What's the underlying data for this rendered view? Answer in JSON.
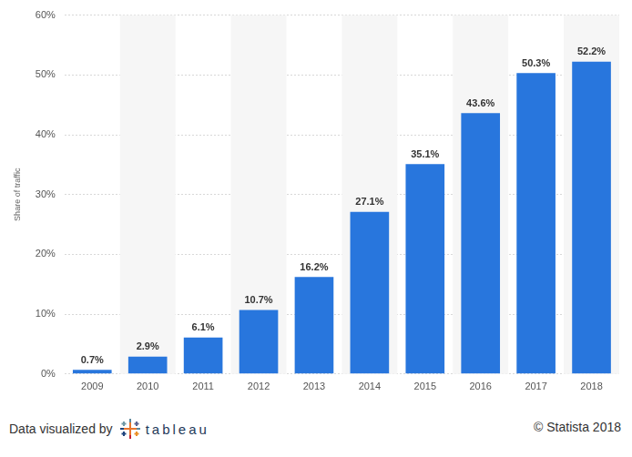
{
  "chart_data": {
    "type": "bar",
    "y_label": "Share of traffic",
    "categories": [
      "2009",
      "2010",
      "2011",
      "2012",
      "2013",
      "2014",
      "2015",
      "2016",
      "2017",
      "2018"
    ],
    "values": [
      0.7,
      2.9,
      6.1,
      10.7,
      16.2,
      27.1,
      35.1,
      43.6,
      50.3,
      52.2
    ],
    "value_labels": [
      "0.7%",
      "2.9%",
      "6.1%",
      "10.7%",
      "16.2%",
      "27.1%",
      "35.1%",
      "43.6%",
      "50.3%",
      "52.2%"
    ],
    "color": "#2876dd",
    "ylim": [
      0,
      60
    ],
    "yticks": [
      {
        "value": 0,
        "label": "0%"
      },
      {
        "value": 10,
        "label": "10%"
      },
      {
        "value": 20,
        "label": "20%"
      },
      {
        "value": 30,
        "label": "30%"
      },
      {
        "value": 40,
        "label": "40%"
      },
      {
        "value": 50,
        "label": "50%"
      },
      {
        "value": 60,
        "label": "60%"
      }
    ],
    "grid": true,
    "data_labels": true,
    "annotations": [
      "Data visualized by",
      "tableau",
      "© Statista 2018"
    ]
  }
}
